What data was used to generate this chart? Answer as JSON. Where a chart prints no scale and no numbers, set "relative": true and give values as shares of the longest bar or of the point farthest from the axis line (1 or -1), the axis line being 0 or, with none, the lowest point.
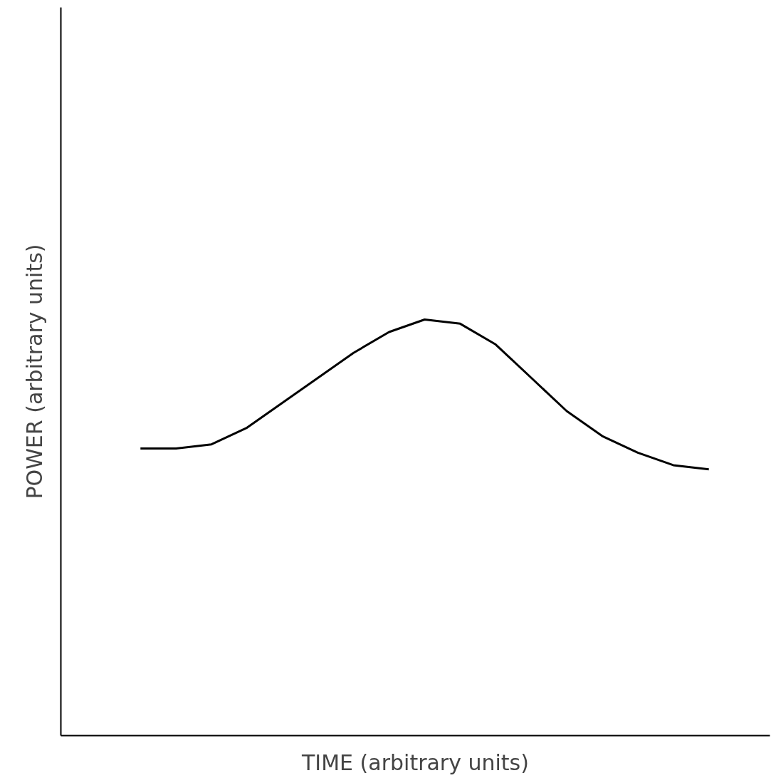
{
  "chart_data": {
    "type": "line",
    "relative": true,
    "xlabel": "TIME (arbitrary units)",
    "ylabel": "POWER (arbitrary units)",
    "categories": [
      null,
      null,
      null,
      null,
      null,
      null,
      null,
      null,
      null,
      null,
      null,
      null,
      null,
      null,
      null,
      null,
      null
    ],
    "series": [
      {
        "color": "#000000",
        "values": [
          0.69,
          0.69,
          0.7,
          0.74,
          0.8,
          0.86,
          0.92,
          0.97,
          1,
          0.99,
          0.94,
          0.86,
          0.78,
          0.72,
          0.68,
          0.65,
          0.64
        ]
      }
    ],
    "marker": "none",
    "line_style": "solid"
  }
}
